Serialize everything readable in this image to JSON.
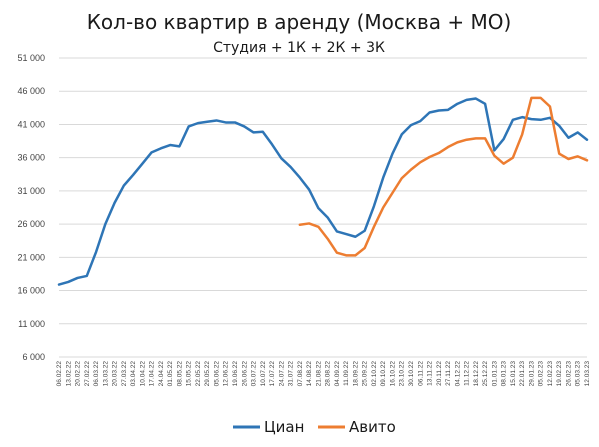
{
  "chart_data": {
    "type": "line",
    "title": "Кол-во квартир в аренду (Москва + МО)",
    "subtitle": "Студия + 1К + 2К + 3К",
    "xlabel": "",
    "ylabel": "",
    "ylim": [
      6000,
      51000
    ],
    "yticks": [
      6000,
      11000,
      16000,
      21000,
      26000,
      31000,
      36000,
      41000,
      46000,
      51000
    ],
    "ytick_labels": [
      "6 000",
      "11 000",
      "16 000",
      "21 000",
      "26 000",
      "31 000",
      "36 000",
      "41 000",
      "46 000",
      "51 000"
    ],
    "grid": true,
    "legend_position": "bottom",
    "categories": [
      "06.02.22",
      "13.02.22",
      "20.02.22",
      "27.02.22",
      "06.03.22",
      "13.03.22",
      "20.03.22",
      "27.03.22",
      "03.04.22",
      "10.04.22",
      "17.04.22",
      "24.04.22",
      "01.05.22",
      "08.05.22",
      "15.05.22",
      "22.05.22",
      "29.05.22",
      "05.06.22",
      "12.06.22",
      "19.06.22",
      "26.06.22",
      "03.07.22",
      "10.07.22",
      "17.07.22",
      "24.07.22",
      "31.07.22",
      "07.08.22",
      "14.08.22",
      "21.08.22",
      "28.08.22",
      "04.09.22",
      "11.09.22",
      "18.09.22",
      "25.09.22",
      "02.10.22",
      "09.10.22",
      "16.10.22",
      "23.10.22",
      "30.10.22",
      "06.11.22",
      "13.11.22",
      "20.11.22",
      "27.11.22",
      "04.12.22",
      "11.12.22",
      "18.12.22",
      "25.12.22",
      "01.01.23",
      "08.01.23",
      "15.01.23",
      "22.01.23",
      "29.01.23",
      "05.02.23",
      "12.02.23",
      "19.02.23",
      "26.02.23",
      "05.03.23",
      "12.03.23"
    ],
    "series": [
      {
        "name": "Циан",
        "color": "#2e75b6",
        "values": [
          16900,
          17300,
          17900,
          18200,
          21800,
          26000,
          29200,
          31800,
          33400,
          35100,
          36800,
          37400,
          37900,
          37700,
          40700,
          41200,
          41400,
          41600,
          41300,
          41300,
          40700,
          39800,
          39900,
          38000,
          35900,
          34600,
          33000,
          31200,
          28400,
          27000,
          24900,
          24500,
          24100,
          25000,
          28700,
          33000,
          36600,
          39500,
          40900,
          41500,
          42800,
          43100,
          43200,
          44100,
          44700,
          44900,
          44100,
          37100,
          38800,
          41700,
          42100,
          41800,
          41700,
          42000,
          40800,
          39000,
          39800,
          38700
        ]
      },
      {
        "name": "Авито",
        "color": "#ed7d31",
        "values": [
          null,
          null,
          null,
          null,
          null,
          null,
          null,
          null,
          null,
          null,
          null,
          null,
          null,
          null,
          null,
          null,
          null,
          null,
          null,
          null,
          null,
          null,
          null,
          null,
          null,
          null,
          25900,
          26100,
          25600,
          23800,
          21700,
          21300,
          21300,
          22400,
          25600,
          28500,
          30700,
          32900,
          34200,
          35300,
          36100,
          36700,
          37600,
          38300,
          38700,
          38900,
          38900,
          36300,
          35100,
          36000,
          39500,
          45000,
          45000,
          43700,
          36600,
          35800,
          36200,
          35600
        ]
      }
    ]
  }
}
